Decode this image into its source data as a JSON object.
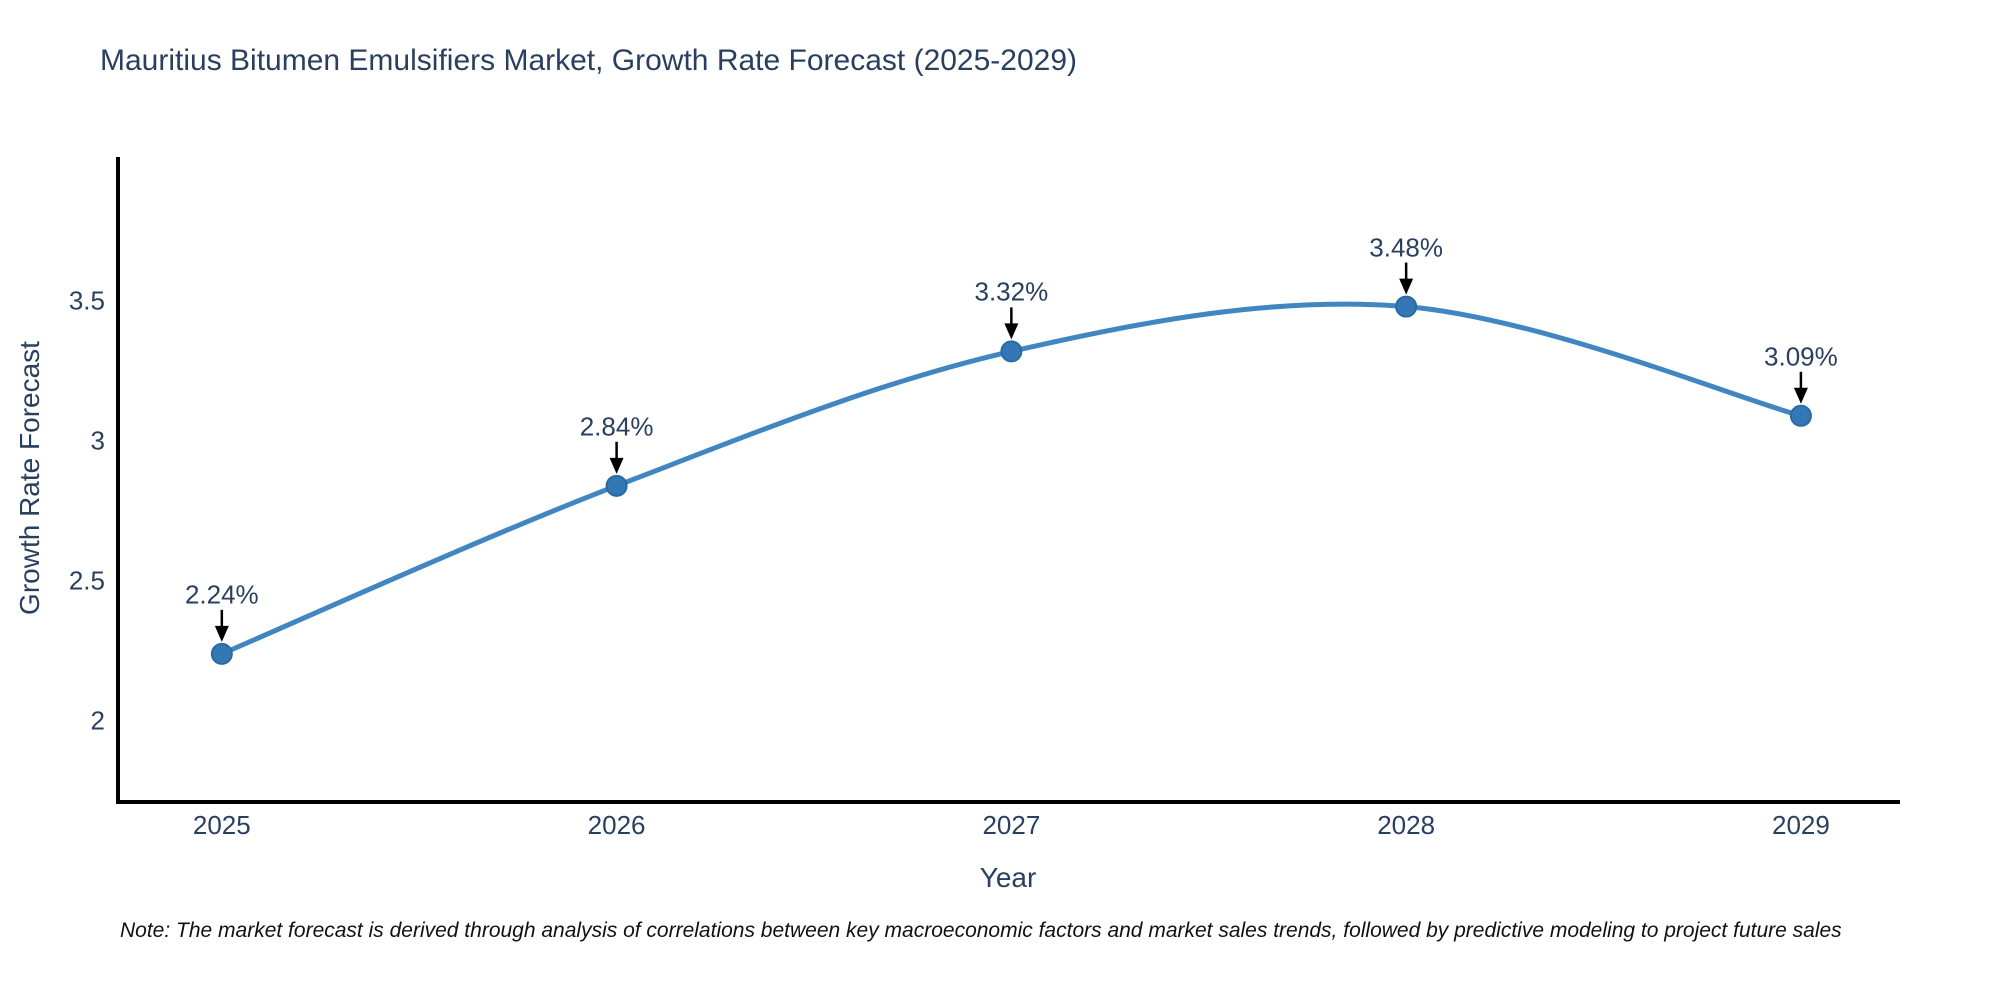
{
  "title": "Mauritius Bitumen Emulsifiers Market, Growth Rate Forecast (2025-2029)",
  "note": "Note: The market forecast is derived through analysis of correlations between key macroeconomic factors and market sales trends, followed by predictive modeling to project future sales",
  "chart_data": {
    "type": "line",
    "title": "Mauritius Bitumen Emulsifiers Market, Growth Rate Forecast (2025-2029)",
    "xlabel": "Year",
    "ylabel": "Growth Rate Forecast",
    "x": [
      2025,
      2026,
      2027,
      2028,
      2029
    ],
    "values": [
      2.24,
      2.84,
      3.32,
      3.48,
      3.09
    ],
    "point_labels": [
      "2.24%",
      "2.84%",
      "3.32%",
      "3.48%",
      "3.09%"
    ],
    "x_ticks": [
      {
        "v": 2025,
        "label": "2025"
      },
      {
        "v": 2026,
        "label": "2026"
      },
      {
        "v": 2027,
        "label": "2027"
      },
      {
        "v": 2028,
        "label": "2028"
      },
      {
        "v": 2029,
        "label": "2029"
      }
    ],
    "y_ticks": [
      {
        "v": 2,
        "label": "2"
      },
      {
        "v": 2.5,
        "label": "2.5"
      },
      {
        "v": 3,
        "label": "3"
      },
      {
        "v": 3.5,
        "label": "3.5"
      }
    ],
    "xlim": [
      2024.737,
      2029.251
    ],
    "ylim": [
      1.711,
      4.007
    ],
    "grid": false,
    "legend": "none",
    "curve": "spline",
    "line_color": "#4186c0",
    "marker_color": "#3377b5",
    "marker_edge_color": "#2a6aa3",
    "axis_line_color": "#000000",
    "text_color": "#2a3f5f",
    "annotation_arrow_color": "#000000"
  }
}
